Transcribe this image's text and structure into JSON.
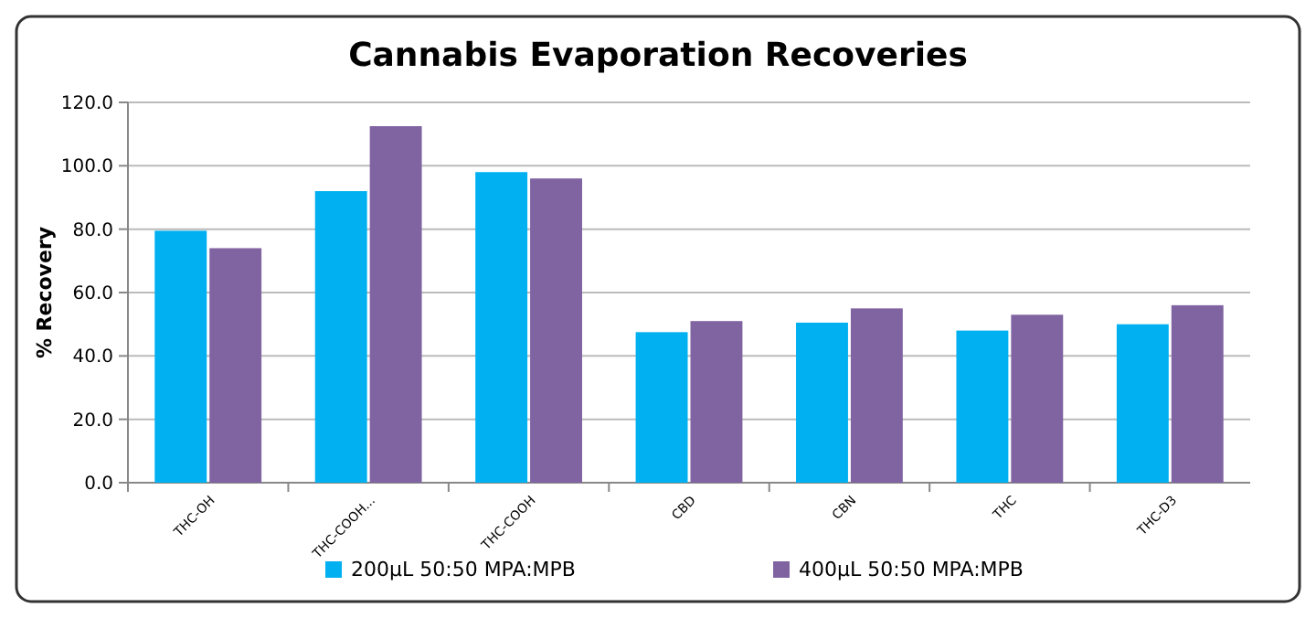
{
  "chart_data": {
    "type": "bar",
    "title": "Cannabis Evaporation Recoveries",
    "ylabel": "% Recovery",
    "categories": [
      "THC-OH",
      "THC-COOH...",
      "THC-COOH",
      "CBD",
      "CBN",
      "THC",
      "THC-D3"
    ],
    "series": [
      {
        "name": "200µL 50:50 MPA:MPB",
        "color": "#00b0f0",
        "values": [
          79.5,
          92,
          98,
          47.5,
          50.5,
          48,
          50
        ]
      },
      {
        "name": "400µL 50:50 MPA:MPB",
        "color": "#8064a2",
        "values": [
          74,
          112.5,
          96,
          51,
          55,
          53,
          56
        ]
      }
    ],
    "ylim": [
      0,
      120
    ],
    "yticks": [
      {
        "value": 0,
        "label": "0.0"
      },
      {
        "value": 20,
        "label": "20.0"
      },
      {
        "value": 40,
        "label": "40.0"
      },
      {
        "value": 60,
        "label": "60.0"
      },
      {
        "value": 80,
        "label": "80.0"
      },
      {
        "value": 100,
        "label": "100.0"
      },
      {
        "value": 120,
        "label": "120.0"
      }
    ],
    "grid": "y",
    "legend": "bottom"
  }
}
